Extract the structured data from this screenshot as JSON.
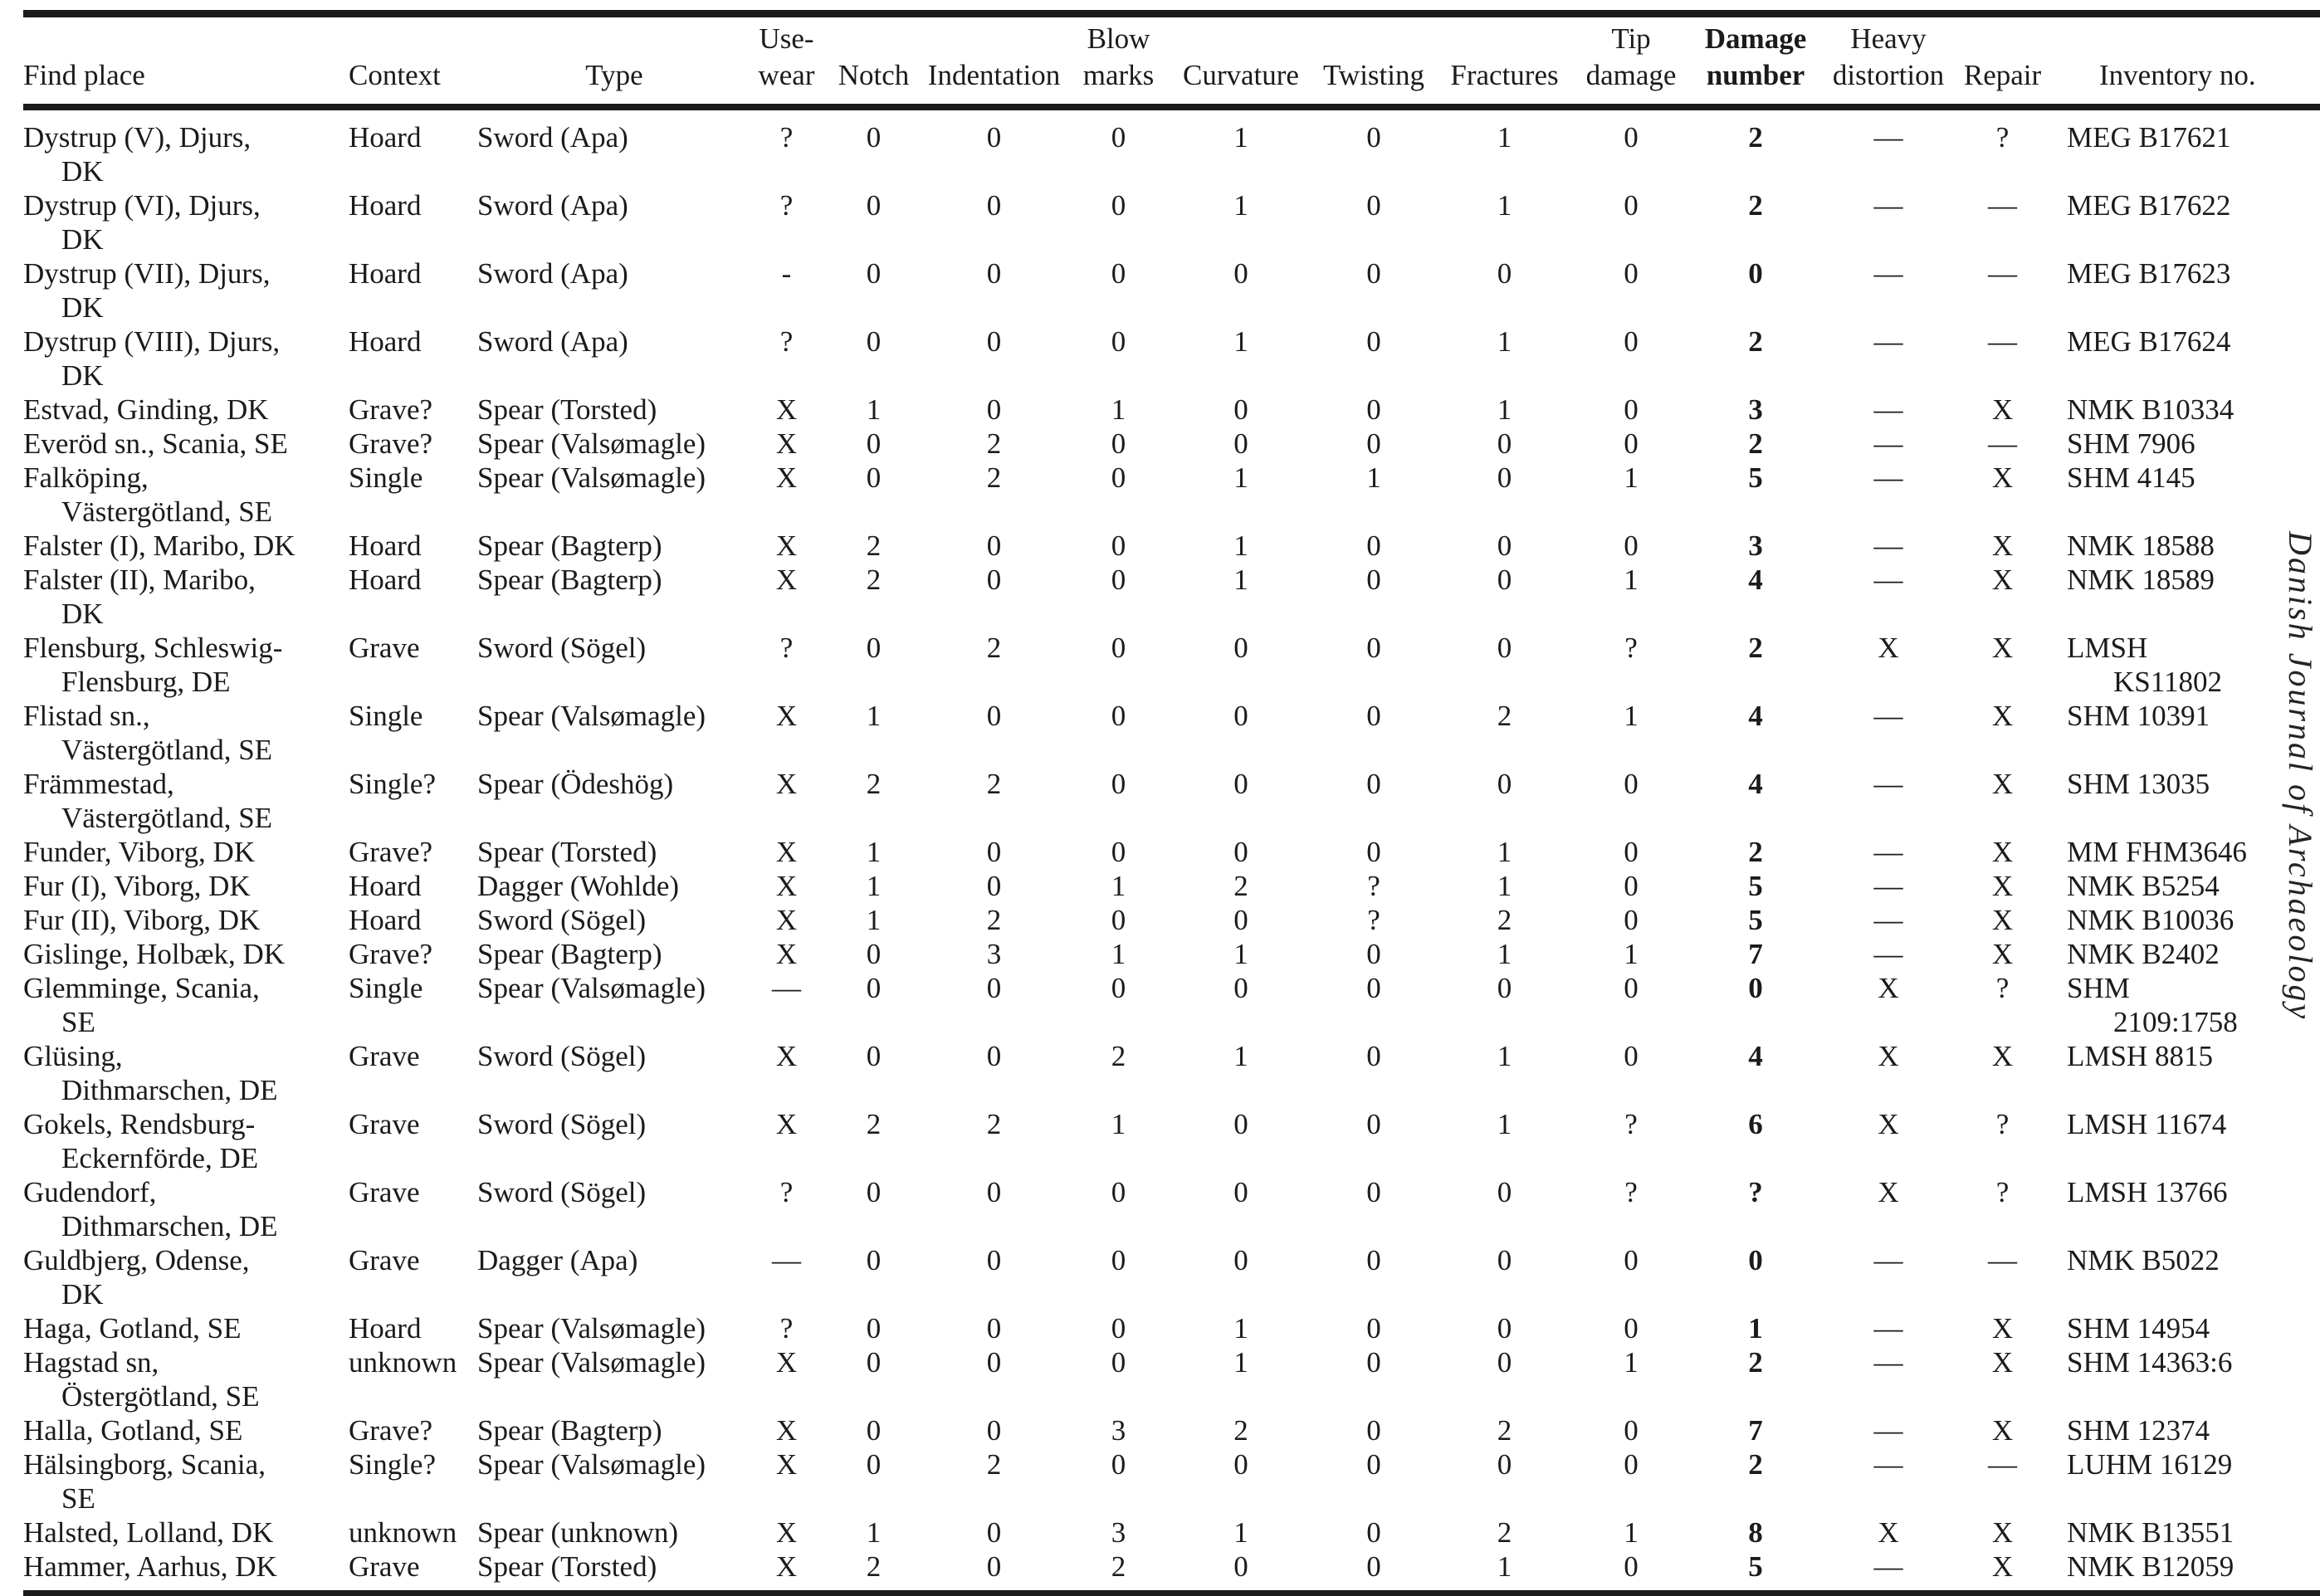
{
  "page": {
    "background": "#ffffff",
    "text_color": "#1b1b1b",
    "rule_color": "#1b1b1b"
  },
  "margin": {
    "journal_title": "Danish Journal of Archaeology"
  },
  "table": {
    "columns": [
      "Find place",
      "Context",
      "Type",
      "Use-\nwear",
      "Notch",
      "Indentation",
      "Blow\nmarks",
      "Curvature",
      "Twisting",
      "Fractures",
      "Tip\ndamage",
      "Damage\nnumber",
      "Heavy\ndistortion",
      "Repair",
      "Inventory no."
    ],
    "rows": [
      [
        "Dystrup (V), Djurs,\nDK",
        "Hoard",
        "Sword (Apa)",
        "?",
        "0",
        "0",
        "0",
        "1",
        "0",
        "1",
        "0",
        "2",
        "—",
        "?",
        "MEG B17621"
      ],
      [
        "Dystrup (VI), Djurs,\nDK",
        "Hoard",
        "Sword (Apa)",
        "?",
        "0",
        "0",
        "0",
        "1",
        "0",
        "1",
        "0",
        "2",
        "—",
        "—",
        "MEG B17622"
      ],
      [
        "Dystrup (VII), Djurs,\nDK",
        "Hoard",
        "Sword (Apa)",
        "-",
        "0",
        "0",
        "0",
        "0",
        "0",
        "0",
        "0",
        "0",
        "—",
        "—",
        "MEG B17623"
      ],
      [
        "Dystrup (VIII), Djurs,\nDK",
        "Hoard",
        "Sword (Apa)",
        "?",
        "0",
        "0",
        "0",
        "1",
        "0",
        "1",
        "0",
        "2",
        "—",
        "—",
        "MEG B17624"
      ],
      [
        "Estvad, Ginding, DK",
        "Grave?",
        "Spear (Torsted)",
        "X",
        "1",
        "0",
        "1",
        "0",
        "0",
        "1",
        "0",
        "3",
        "—",
        "X",
        "NMK B10334"
      ],
      [
        "Everöd sn., Scania, SE",
        "Grave?",
        "Spear (Valsømagle)",
        "X",
        "0",
        "2",
        "0",
        "0",
        "0",
        "0",
        "0",
        "2",
        "—",
        "—",
        "SHM 7906"
      ],
      [
        "Falköping,\nVästergötland, SE",
        "Single",
        "Spear (Valsømagle)",
        "X",
        "0",
        "2",
        "0",
        "1",
        "1",
        "0",
        "1",
        "5",
        "—",
        "X",
        "SHM 4145"
      ],
      [
        "Falster (I), Maribo, DK",
        "Hoard",
        "Spear (Bagterp)",
        "X",
        "2",
        "0",
        "0",
        "1",
        "0",
        "0",
        "0",
        "3",
        "—",
        "X",
        "NMK 18588"
      ],
      [
        "Falster (II), Maribo,\nDK",
        "Hoard",
        "Spear (Bagterp)",
        "X",
        "2",
        "0",
        "0",
        "1",
        "0",
        "0",
        "1",
        "4",
        "—",
        "X",
        "NMK 18589"
      ],
      [
        "Flensburg, Schleswig-\nFlensburg, DE",
        "Grave",
        "Sword (Sögel)",
        "?",
        "0",
        "2",
        "0",
        "0",
        "0",
        "0",
        "?",
        "2",
        "X",
        "X",
        "LMSH\nKS11802"
      ],
      [
        "Flistad sn.,\nVästergötland, SE",
        "Single",
        "Spear (Valsømagle)",
        "X",
        "1",
        "0",
        "0",
        "0",
        "0",
        "2",
        "1",
        "4",
        "—",
        "X",
        "SHM 10391"
      ],
      [
        "Främmestad,\nVästergötland, SE",
        "Single?",
        "Spear (Ödeshög)",
        "X",
        "2",
        "2",
        "0",
        "0",
        "0",
        "0",
        "0",
        "4",
        "—",
        "X",
        "SHM 13035"
      ],
      [
        "Funder, Viborg, DK",
        "Grave?",
        "Spear (Torsted)",
        "X",
        "1",
        "0",
        "0",
        "0",
        "0",
        "1",
        "0",
        "2",
        "—",
        "X",
        "MM FHM3646"
      ],
      [
        "Fur (I), Viborg, DK",
        "Hoard",
        "Dagger (Wohlde)",
        "X",
        "1",
        "0",
        "1",
        "2",
        "?",
        "1",
        "0",
        "5",
        "—",
        "X",
        "NMK B5254"
      ],
      [
        "Fur (II), Viborg, DK",
        "Hoard",
        "Sword (Sögel)",
        "X",
        "1",
        "2",
        "0",
        "0",
        "?",
        "2",
        "0",
        "5",
        "—",
        "X",
        "NMK B10036"
      ],
      [
        "Gislinge, Holbæk, DK",
        "Grave?",
        "Spear (Bagterp)",
        "X",
        "0",
        "3",
        "1",
        "1",
        "0",
        "1",
        "1",
        "7",
        "—",
        "X",
        "NMK B2402"
      ],
      [
        "Glemminge, Scania,\nSE",
        "Single",
        "Spear (Valsømagle)",
        "—",
        "0",
        "0",
        "0",
        "0",
        "0",
        "0",
        "0",
        "0",
        "X",
        "?",
        "SHM\n2109:1758"
      ],
      [
        "Glüsing,\nDithmarschen, DE",
        "Grave",
        "Sword (Sögel)",
        "X",
        "0",
        "0",
        "2",
        "1",
        "0",
        "1",
        "0",
        "4",
        "X",
        "X",
        "LMSH 8815"
      ],
      [
        "Gokels, Rendsburg-\nEckernförde, DE",
        "Grave",
        "Sword (Sögel)",
        "X",
        "2",
        "2",
        "1",
        "0",
        "0",
        "1",
        "?",
        "6",
        "X",
        "?",
        "LMSH 11674"
      ],
      [
        "Gudendorf,\nDithmarschen, DE",
        "Grave",
        "Sword (Sögel)",
        "?",
        "0",
        "0",
        "0",
        "0",
        "0",
        "0",
        "?",
        "?",
        "X",
        "?",
        "LMSH 13766"
      ],
      [
        "Guldbjerg, Odense,\nDK",
        "Grave",
        "Dagger (Apa)",
        "—",
        "0",
        "0",
        "0",
        "0",
        "0",
        "0",
        "0",
        "0",
        "—",
        "—",
        "NMK B5022"
      ],
      [
        "Haga, Gotland, SE",
        "Hoard",
        "Spear (Valsømagle)",
        "?",
        "0",
        "0",
        "0",
        "1",
        "0",
        "0",
        "0",
        "1",
        "—",
        "X",
        "SHM 14954"
      ],
      [
        "Hagstad sn,\nÖstergötland, SE",
        "unknown",
        "Spear (Valsømagle)",
        "X",
        "0",
        "0",
        "0",
        "1",
        "0",
        "0",
        "1",
        "2",
        "—",
        "X",
        "SHM 14363:6"
      ],
      [
        "Halla, Gotland, SE",
        "Grave?",
        "Spear (Bagterp)",
        "X",
        "0",
        "0",
        "3",
        "2",
        "0",
        "2",
        "0",
        "7",
        "—",
        "X",
        "SHM 12374"
      ],
      [
        "Hälsingborg, Scania,\nSE",
        "Single?",
        "Spear (Valsømagle)",
        "X",
        "0",
        "2",
        "0",
        "0",
        "0",
        "0",
        "0",
        "2",
        "—",
        "—",
        "LUHM 16129"
      ],
      [
        "Halsted, Lolland, DK",
        "unknown",
        "Spear (unknown)",
        "X",
        "1",
        "0",
        "3",
        "1",
        "0",
        "2",
        "1",
        "8",
        "X",
        "X",
        "NMK B13551"
      ],
      [
        "Hammer, Aarhus, DK",
        "Grave",
        "Spear (Torsted)",
        "X",
        "2",
        "0",
        "2",
        "0",
        "0",
        "1",
        "0",
        "5",
        "—",
        "X",
        "NMK B12059"
      ]
    ]
  }
}
